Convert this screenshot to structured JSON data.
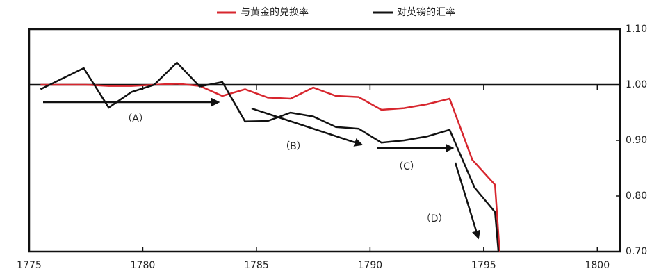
{
  "chart_data": {
    "type": "line",
    "legend": "top",
    "xlim": [
      1775,
      1801
    ],
    "xticks": [
      1775,
      1780,
      1785,
      1790,
      1795,
      1800
    ],
    "ylim": [
      0.7,
      1.1
    ],
    "yticks": [
      {
        "value": 1.1,
        "label": "1.10"
      },
      {
        "value": 1.0,
        "label": "1.00"
      },
      {
        "value": 0.9,
        "label": "0.90"
      },
      {
        "value": 0.8,
        "label": "0.80"
      },
      {
        "value": 0.7,
        "label": "0.70"
      }
    ],
    "reference_line": 1.0,
    "series": [
      {
        "name": "与黄金的兑换率",
        "color": "#d7262e",
        "x": [
          1775.5,
          1776.5,
          1777.5,
          1778.5,
          1779.5,
          1780.5,
          1781.5,
          1782.5,
          1783.5,
          1784.5,
          1785.5,
          1786.5,
          1787.5,
          1788.5,
          1789.5,
          1790.5,
          1791.5,
          1792.5,
          1793.5,
          1794.5,
          1795.5,
          1795.7
        ],
        "values": [
          1.0,
          1.0,
          1.0,
          0.998,
          0.998,
          1.0,
          1.002,
          0.998,
          0.98,
          0.992,
          0.977,
          0.975,
          0.995,
          0.98,
          0.978,
          0.955,
          0.958,
          0.965,
          0.975,
          0.865,
          0.82,
          0.7
        ]
      },
      {
        "name": "对英镑的汇率",
        "color": "#111111",
        "x": [
          1775.5,
          1777.4,
          1778.5,
          1779.5,
          1780.5,
          1781.5,
          1782.5,
          1783.5,
          1784.5,
          1785.5,
          1786.5,
          1787.5,
          1788.5,
          1789.5,
          1790.5,
          1791.5,
          1792.5,
          1793.5,
          1794.6,
          1795.5,
          1795.65
        ],
        "values": [
          0.992,
          1.03,
          0.959,
          0.987,
          1.0,
          1.04,
          0.997,
          1.005,
          0.934,
          0.935,
          0.95,
          0.943,
          0.924,
          0.921,
          0.896,
          0.9,
          0.907,
          0.919,
          0.815,
          0.771,
          0.7
        ]
      }
    ],
    "annotations": [
      "（A）",
      "（B）",
      "（C）",
      "（D）"
    ]
  }
}
